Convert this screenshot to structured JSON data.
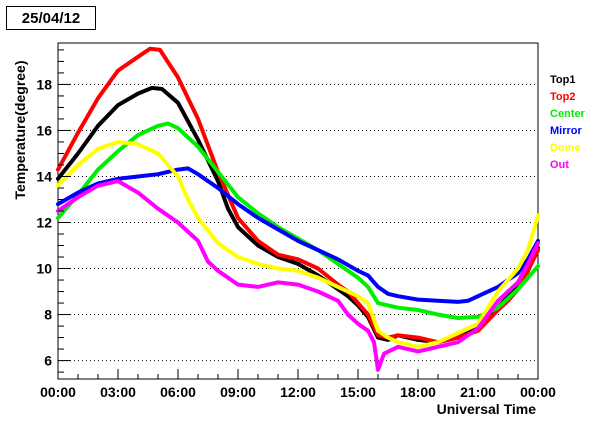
{
  "chart_data": {
    "type": "line",
    "title": "25/04/12",
    "xlabel": "Universal Time",
    "ylabel": "Temperature(degree)",
    "xlim": [
      0,
      24
    ],
    "ylim": [
      5.2,
      19.8
    ],
    "x_ticks": [
      0,
      3,
      6,
      9,
      12,
      15,
      18,
      21,
      24
    ],
    "x_tick_labels": [
      "00:00",
      "03:00",
      "06:00",
      "09:00",
      "12:00",
      "15:00",
      "18:00",
      "21:00",
      "00:00"
    ],
    "y_ticks": [
      6,
      8,
      10,
      12,
      14,
      16,
      18
    ],
    "y_tick_labels": [
      "6",
      "8",
      "10",
      "12",
      "14",
      "16",
      "18"
    ],
    "grid": "horizontal dotted",
    "legend": "right",
    "series": [
      {
        "name": "Top1",
        "color": "#000000",
        "points": [
          [
            0,
            13.9
          ],
          [
            1,
            15.0
          ],
          [
            2,
            16.2
          ],
          [
            3,
            17.1
          ],
          [
            4,
            17.6
          ],
          [
            4.7,
            17.85
          ],
          [
            5.2,
            17.8
          ],
          [
            6,
            17.2
          ],
          [
            7,
            15.6
          ],
          [
            8,
            13.8
          ],
          [
            8.5,
            12.6
          ],
          [
            9,
            11.8
          ],
          [
            10,
            11.0
          ],
          [
            11,
            10.5
          ],
          [
            12,
            10.2
          ],
          [
            13,
            9.7
          ],
          [
            14,
            9.1
          ],
          [
            14.5,
            8.8
          ],
          [
            15,
            8.4
          ],
          [
            15.5,
            7.9
          ],
          [
            16,
            7.0
          ],
          [
            16.5,
            6.9
          ],
          [
            17,
            7.1
          ],
          [
            18,
            6.9
          ],
          [
            19,
            6.8
          ],
          [
            20,
            7.0
          ],
          [
            21,
            7.4
          ],
          [
            22,
            8.3
          ],
          [
            22.5,
            8.8
          ],
          [
            23,
            9.2
          ],
          [
            23.5,
            9.9
          ],
          [
            24,
            10.9
          ]
        ]
      },
      {
        "name": "Top2",
        "color": "#ff0000",
        "points": [
          [
            0,
            14.3
          ],
          [
            1,
            15.9
          ],
          [
            2,
            17.4
          ],
          [
            3,
            18.6
          ],
          [
            4,
            19.2
          ],
          [
            4.6,
            19.55
          ],
          [
            5.1,
            19.5
          ],
          [
            6,
            18.3
          ],
          [
            7,
            16.5
          ],
          [
            8,
            14.2
          ],
          [
            9,
            12.2
          ],
          [
            10,
            11.2
          ],
          [
            11,
            10.6
          ],
          [
            12,
            10.4
          ],
          [
            13,
            10.0
          ],
          [
            14,
            9.3
          ],
          [
            14.5,
            9.0
          ],
          [
            15,
            8.5
          ],
          [
            15.5,
            8.0
          ],
          [
            16,
            7.1
          ],
          [
            16.5,
            7.0
          ],
          [
            17,
            7.1
          ],
          [
            18,
            7.0
          ],
          [
            19,
            6.8
          ],
          [
            20,
            7.0
          ],
          [
            21,
            7.3
          ],
          [
            22,
            8.2
          ],
          [
            22.5,
            8.6
          ],
          [
            23,
            9.1
          ],
          [
            23.5,
            9.9
          ],
          [
            24,
            10.8
          ]
        ]
      },
      {
        "name": "Center",
        "color": "#00ee00",
        "points": [
          [
            0,
            12.2
          ],
          [
            1,
            13.2
          ],
          [
            2,
            14.3
          ],
          [
            3,
            15.1
          ],
          [
            4,
            15.8
          ],
          [
            5,
            16.2
          ],
          [
            5.5,
            16.3
          ],
          [
            6,
            16.1
          ],
          [
            7,
            15.3
          ],
          [
            8,
            14.2
          ],
          [
            9,
            13.1
          ],
          [
            10,
            12.4
          ],
          [
            11,
            11.8
          ],
          [
            12,
            11.3
          ],
          [
            13,
            10.8
          ],
          [
            14,
            10.2
          ],
          [
            14.5,
            9.9
          ],
          [
            15,
            9.6
          ],
          [
            15.5,
            9.2
          ],
          [
            16,
            8.5
          ],
          [
            16.5,
            8.4
          ],
          [
            17,
            8.3
          ],
          [
            18,
            8.2
          ],
          [
            19,
            8.0
          ],
          [
            20,
            7.85
          ],
          [
            21,
            7.9
          ],
          [
            22,
            8.3
          ],
          [
            23,
            9.1
          ],
          [
            23.5,
            9.6
          ],
          [
            24,
            10.1
          ]
        ]
      },
      {
        "name": "Mirror",
        "color": "#0000ff",
        "points": [
          [
            0,
            12.8
          ],
          [
            1,
            13.3
          ],
          [
            2,
            13.7
          ],
          [
            3,
            13.9
          ],
          [
            4,
            14.0
          ],
          [
            5,
            14.1
          ],
          [
            6,
            14.3
          ],
          [
            6.5,
            14.35
          ],
          [
            7,
            14.1
          ],
          [
            8,
            13.5
          ],
          [
            9,
            12.8
          ],
          [
            10,
            12.2
          ],
          [
            11,
            11.7
          ],
          [
            12,
            11.2
          ],
          [
            13,
            10.8
          ],
          [
            14,
            10.4
          ],
          [
            15,
            9.9
          ],
          [
            15.5,
            9.7
          ],
          [
            16,
            9.2
          ],
          [
            16.5,
            8.9
          ],
          [
            17,
            8.8
          ],
          [
            18,
            8.65
          ],
          [
            19,
            8.6
          ],
          [
            20,
            8.55
          ],
          [
            20.5,
            8.6
          ],
          [
            21,
            8.8
          ],
          [
            22,
            9.2
          ],
          [
            23,
            9.8
          ],
          [
            23.5,
            10.4
          ],
          [
            24,
            11.2
          ]
        ]
      },
      {
        "name": "Dome",
        "color": "#ffff00",
        "points": [
          [
            0,
            13.6
          ],
          [
            1,
            14.5
          ],
          [
            2,
            15.2
          ],
          [
            3,
            15.5
          ],
          [
            4,
            15.4
          ],
          [
            5,
            15.0
          ],
          [
            6,
            14.0
          ],
          [
            6.5,
            13.0
          ],
          [
            7,
            12.2
          ],
          [
            8,
            11.1
          ],
          [
            9,
            10.5
          ],
          [
            10,
            10.2
          ],
          [
            11,
            10.0
          ],
          [
            12,
            9.9
          ],
          [
            13,
            9.6
          ],
          [
            14,
            9.2
          ],
          [
            15,
            8.8
          ],
          [
            15.5,
            8.5
          ],
          [
            16,
            7.3
          ],
          [
            16.5,
            7.0
          ],
          [
            17,
            6.8
          ],
          [
            18,
            6.6
          ],
          [
            19,
            6.8
          ],
          [
            20,
            7.2
          ],
          [
            21,
            7.6
          ],
          [
            22,
            9.0
          ],
          [
            23,
            10.0
          ],
          [
            23.5,
            10.8
          ],
          [
            24,
            12.3
          ]
        ]
      },
      {
        "name": "Out",
        "color": "#ff00ff",
        "points": [
          [
            0,
            12.5
          ],
          [
            1,
            13.1
          ],
          [
            2,
            13.6
          ],
          [
            3,
            13.8
          ],
          [
            4,
            13.3
          ],
          [
            5,
            12.6
          ],
          [
            6,
            12.0
          ],
          [
            7,
            11.2
          ],
          [
            7.5,
            10.3
          ],
          [
            8,
            9.9
          ],
          [
            8.5,
            9.6
          ],
          [
            9,
            9.3
          ],
          [
            10,
            9.2
          ],
          [
            11,
            9.4
          ],
          [
            12,
            9.3
          ],
          [
            13,
            9.0
          ],
          [
            14,
            8.6
          ],
          [
            14.5,
            8.0
          ],
          [
            15,
            7.6
          ],
          [
            15.5,
            7.3
          ],
          [
            15.8,
            6.8
          ],
          [
            16,
            5.6
          ],
          [
            16.3,
            6.3
          ],
          [
            17,
            6.6
          ],
          [
            18,
            6.4
          ],
          [
            19,
            6.6
          ],
          [
            20,
            6.8
          ],
          [
            21,
            7.4
          ],
          [
            22,
            8.6
          ],
          [
            23,
            9.4
          ],
          [
            23.5,
            10.2
          ],
          [
            24,
            11.1
          ]
        ]
      }
    ]
  }
}
